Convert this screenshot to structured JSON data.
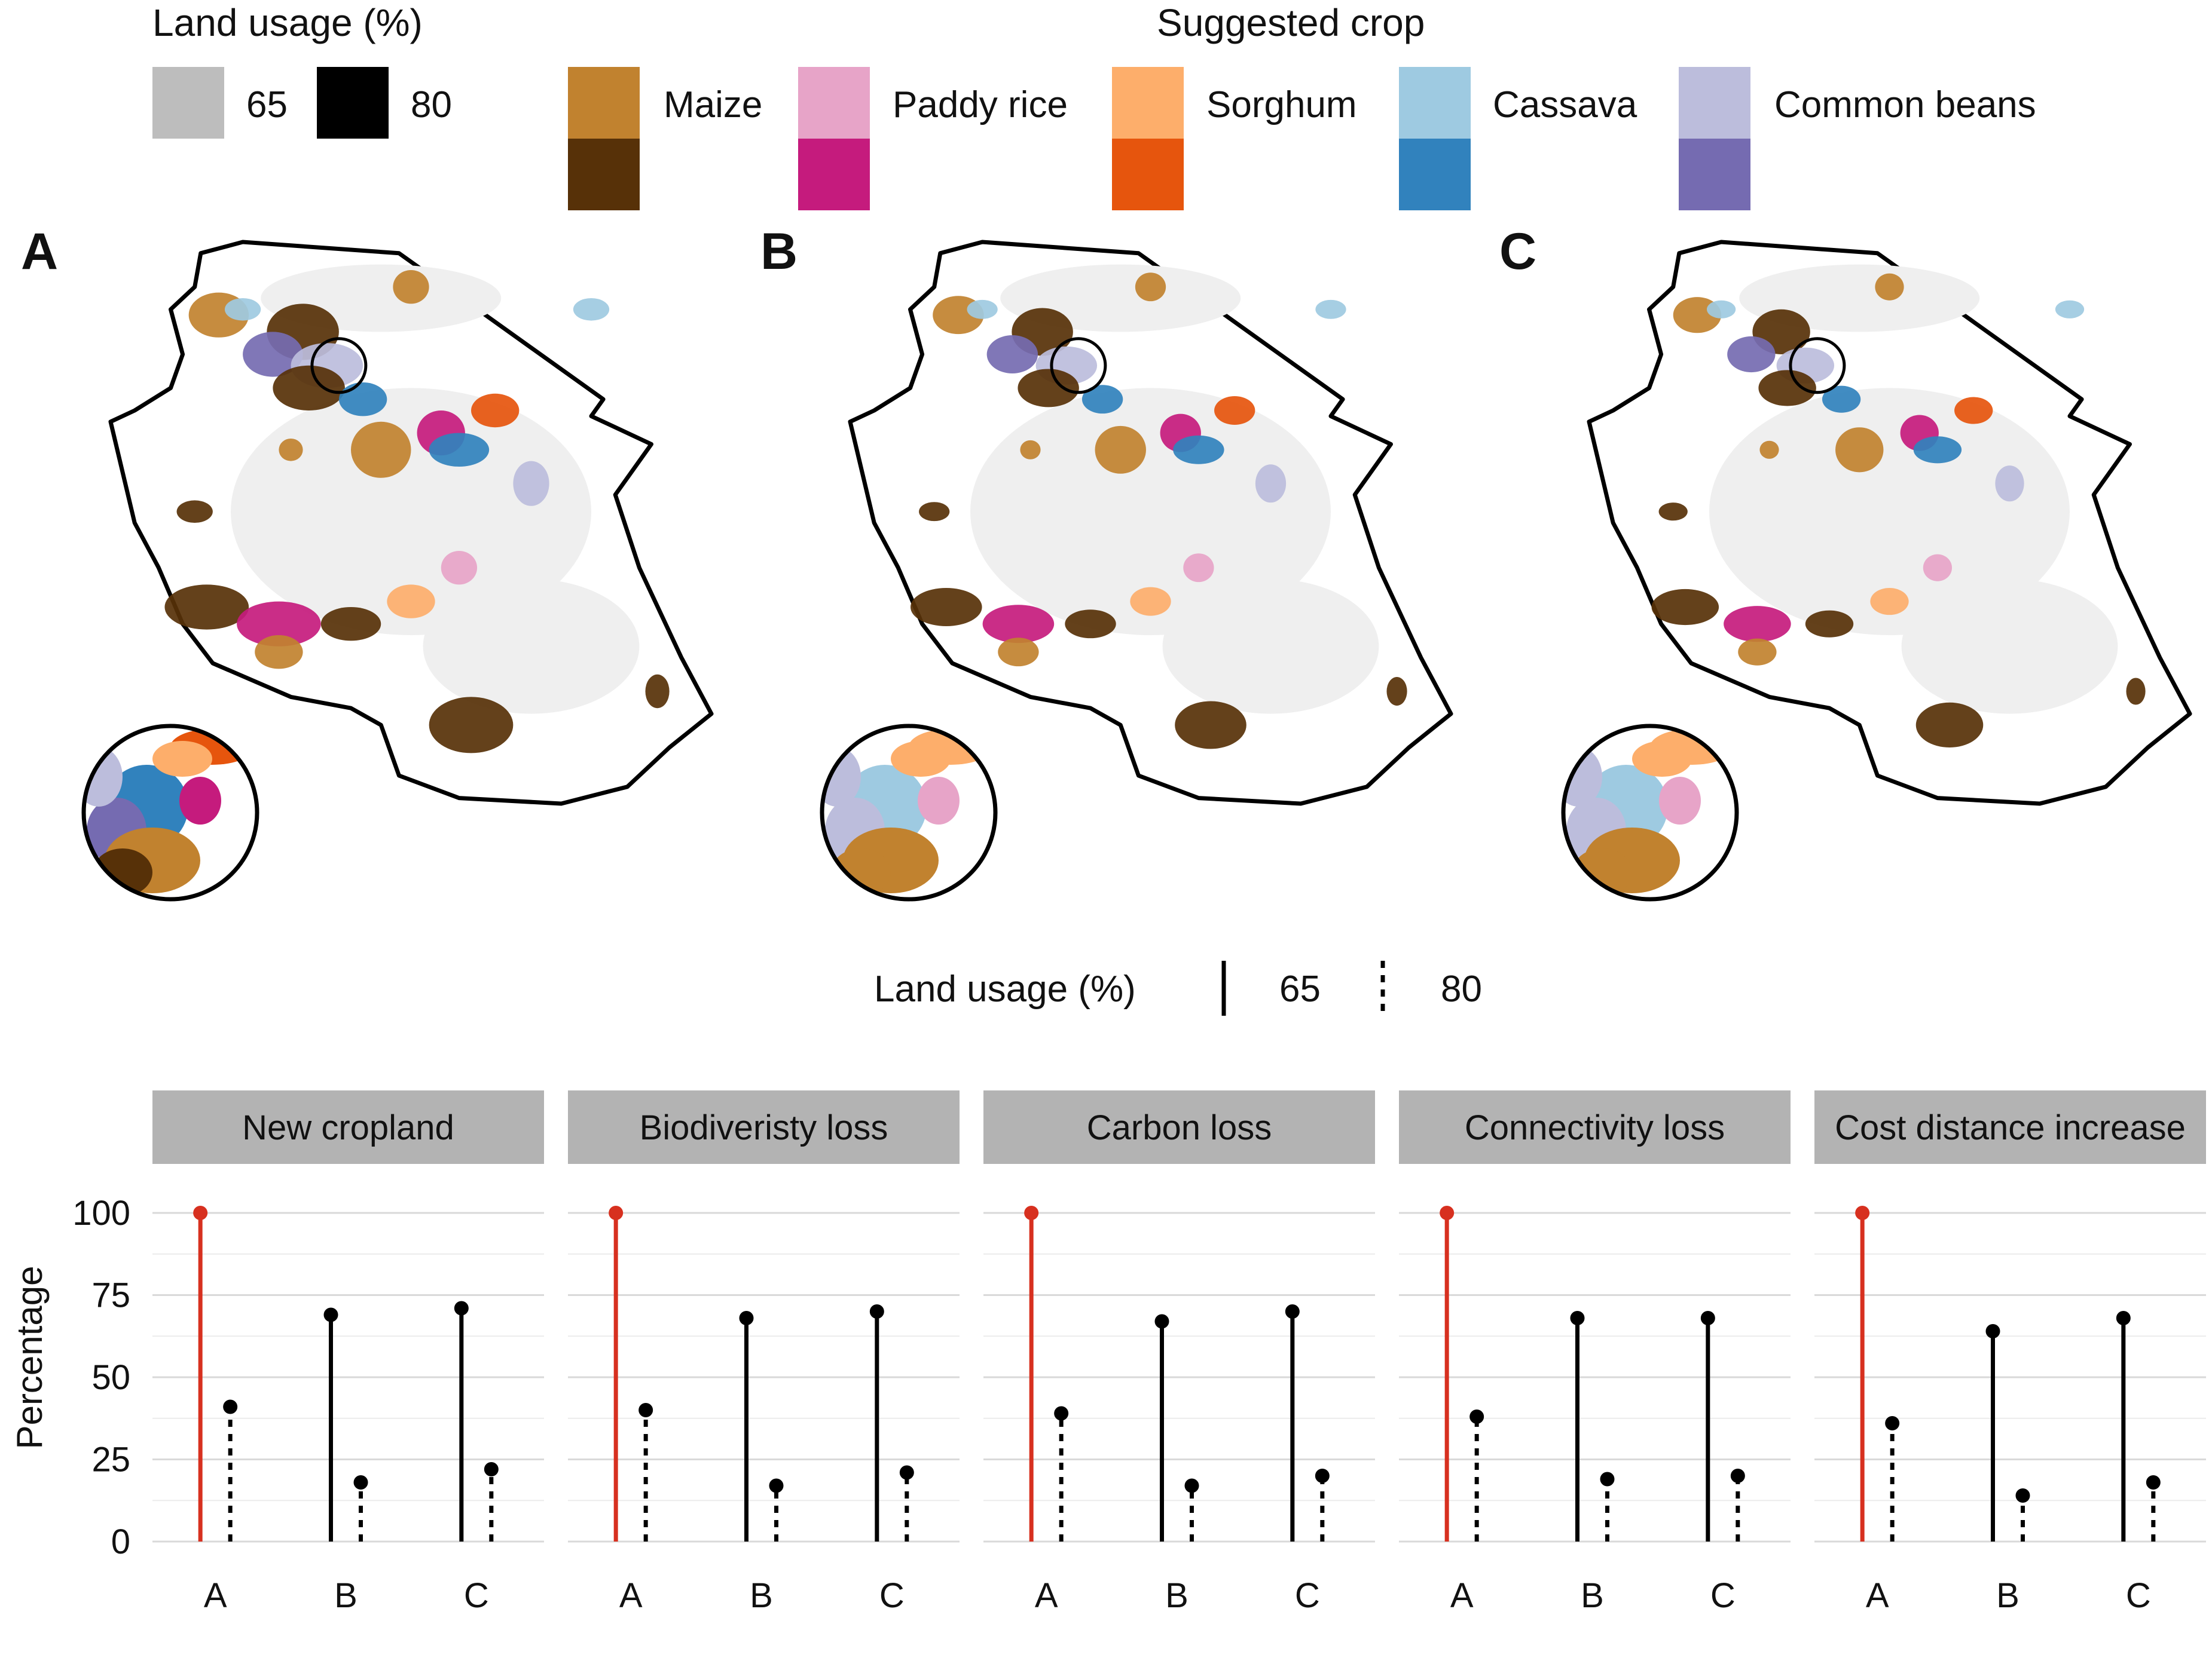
{
  "legend_land": {
    "title": "Land usage (%)",
    "items": [
      {
        "label": "65",
        "color": "#bdbdbd"
      },
      {
        "label": "80",
        "color": "#000000"
      }
    ]
  },
  "legend_crop": {
    "title": "Suggested crop",
    "items": [
      {
        "label": "Maize",
        "light": "#c1822f",
        "dark": "#573108"
      },
      {
        "label": "Paddy rice",
        "light": "#e7a4c8",
        "dark": "#c51b7d"
      },
      {
        "label": "Sorghum",
        "light": "#fdae6b",
        "dark": "#e6550d"
      },
      {
        "label": "Cassava",
        "light": "#9ecae1",
        "dark": "#3182bd"
      },
      {
        "label": "Common beans",
        "light": "#bcbddc",
        "dark": "#756bb1"
      }
    ]
  },
  "maps": {
    "panels": [
      "A",
      "B",
      "C"
    ],
    "background_color": "#efefef",
    "border_color": "#000000"
  },
  "linetype_legend": {
    "title": "Land usage (%)",
    "items": [
      {
        "label": "65",
        "linetype": "solid"
      },
      {
        "label": "80",
        "linetype": "dotted"
      }
    ]
  },
  "chart_data": {
    "type": "lollipop",
    "ylabel": "Percentage",
    "xlabel": "",
    "ylim": [
      0,
      110
    ],
    "yticks": [
      0,
      25,
      50,
      75,
      100
    ],
    "categories": [
      "A",
      "B",
      "C"
    ],
    "highlight_color": "#d7301f",
    "facets": [
      {
        "title": "New cropland",
        "values": {
          "65": [
            100,
            69,
            71
          ],
          "80": [
            41,
            18,
            22
          ]
        }
      },
      {
        "title": "Biodiveristy loss",
        "values": {
          "65": [
            100,
            68,
            70
          ],
          "80": [
            40,
            17,
            21
          ]
        }
      },
      {
        "title": "Carbon loss",
        "values": {
          "65": [
            100,
            67,
            70
          ],
          "80": [
            39,
            17,
            20
          ]
        }
      },
      {
        "title": "Connectivity loss",
        "values": {
          "65": [
            100,
            68,
            68
          ],
          "80": [
            38,
            19,
            20
          ]
        }
      },
      {
        "title": "Cost distance increase",
        "values": {
          "65": [
            100,
            64,
            68
          ],
          "80": [
            36,
            14,
            18
          ]
        }
      }
    ]
  }
}
